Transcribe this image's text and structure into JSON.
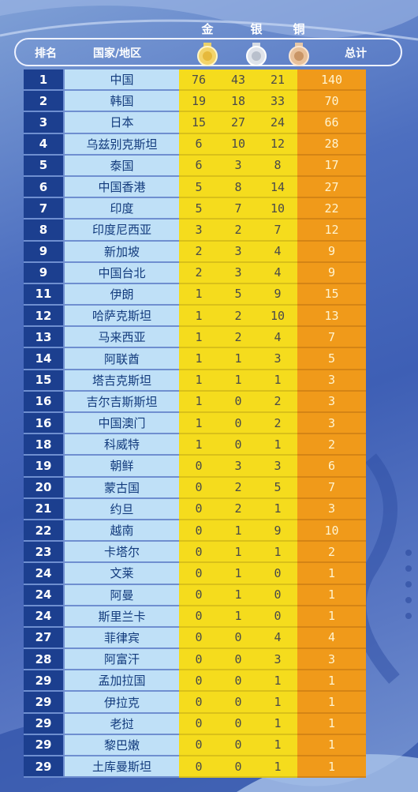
{
  "header": {
    "rank_label": "排名",
    "country_label": "国家/地区",
    "gold_label": "金",
    "silver_label": "银",
    "bronze_label": "铜",
    "total_label": "总计"
  },
  "colors": {
    "rank_bg": "#1c3f8f",
    "name_bg": "#bfe0f7",
    "medal_bg": "#f5dc1d",
    "total_bg": "#f09a1a"
  },
  "rows": [
    {
      "rank": "1",
      "name": "中国",
      "gold": "76",
      "silver": "43",
      "bronze": "21",
      "total": "140"
    },
    {
      "rank": "2",
      "name": "韩国",
      "gold": "19",
      "silver": "18",
      "bronze": "33",
      "total": "70"
    },
    {
      "rank": "3",
      "name": "日本",
      "gold": "15",
      "silver": "27",
      "bronze": "24",
      "total": "66"
    },
    {
      "rank": "4",
      "name": "乌兹别克斯坦",
      "gold": "6",
      "silver": "10",
      "bronze": "12",
      "total": "28"
    },
    {
      "rank": "5",
      "name": "泰国",
      "gold": "6",
      "silver": "3",
      "bronze": "8",
      "total": "17"
    },
    {
      "rank": "6",
      "name": "中国香港",
      "gold": "5",
      "silver": "8",
      "bronze": "14",
      "total": "27"
    },
    {
      "rank": "7",
      "name": "印度",
      "gold": "5",
      "silver": "7",
      "bronze": "10",
      "total": "22"
    },
    {
      "rank": "8",
      "name": "印度尼西亚",
      "gold": "3",
      "silver": "2",
      "bronze": "7",
      "total": "12"
    },
    {
      "rank": "9",
      "name": "新加坡",
      "gold": "2",
      "silver": "3",
      "bronze": "4",
      "total": "9"
    },
    {
      "rank": "9",
      "name": "中国台北",
      "gold": "2",
      "silver": "3",
      "bronze": "4",
      "total": "9"
    },
    {
      "rank": "11",
      "name": "伊朗",
      "gold": "1",
      "silver": "5",
      "bronze": "9",
      "total": "15"
    },
    {
      "rank": "12",
      "name": "哈萨克斯坦",
      "gold": "1",
      "silver": "2",
      "bronze": "10",
      "total": "13"
    },
    {
      "rank": "13",
      "name": "马来西亚",
      "gold": "1",
      "silver": "2",
      "bronze": "4",
      "total": "7"
    },
    {
      "rank": "14",
      "name": "阿联酋",
      "gold": "1",
      "silver": "1",
      "bronze": "3",
      "total": "5"
    },
    {
      "rank": "15",
      "name": "塔吉克斯坦",
      "gold": "1",
      "silver": "1",
      "bronze": "1",
      "total": "3"
    },
    {
      "rank": "16",
      "name": "吉尔吉斯斯坦",
      "gold": "1",
      "silver": "0",
      "bronze": "2",
      "total": "3"
    },
    {
      "rank": "16",
      "name": "中国澳门",
      "gold": "1",
      "silver": "0",
      "bronze": "2",
      "total": "3"
    },
    {
      "rank": "18",
      "name": "科威特",
      "gold": "1",
      "silver": "0",
      "bronze": "1",
      "total": "2"
    },
    {
      "rank": "19",
      "name": "朝鲜",
      "gold": "0",
      "silver": "3",
      "bronze": "3",
      "total": "6"
    },
    {
      "rank": "20",
      "name": "蒙古国",
      "gold": "0",
      "silver": "2",
      "bronze": "5",
      "total": "7"
    },
    {
      "rank": "21",
      "name": "约旦",
      "gold": "0",
      "silver": "2",
      "bronze": "1",
      "total": "3"
    },
    {
      "rank": "22",
      "name": "越南",
      "gold": "0",
      "silver": "1",
      "bronze": "9",
      "total": "10"
    },
    {
      "rank": "23",
      "name": "卡塔尔",
      "gold": "0",
      "silver": "1",
      "bronze": "1",
      "total": "2"
    },
    {
      "rank": "24",
      "name": "文莱",
      "gold": "0",
      "silver": "1",
      "bronze": "0",
      "total": "1"
    },
    {
      "rank": "24",
      "name": "阿曼",
      "gold": "0",
      "silver": "1",
      "bronze": "0",
      "total": "1"
    },
    {
      "rank": "24",
      "name": "斯里兰卡",
      "gold": "0",
      "silver": "1",
      "bronze": "0",
      "total": "1"
    },
    {
      "rank": "27",
      "name": "菲律宾",
      "gold": "0",
      "silver": "0",
      "bronze": "4",
      "total": "4"
    },
    {
      "rank": "28",
      "name": "阿富汗",
      "gold": "0",
      "silver": "0",
      "bronze": "3",
      "total": "3"
    },
    {
      "rank": "29",
      "name": "孟加拉国",
      "gold": "0",
      "silver": "0",
      "bronze": "1",
      "total": "1"
    },
    {
      "rank": "29",
      "name": "伊拉克",
      "gold": "0",
      "silver": "0",
      "bronze": "1",
      "total": "1"
    },
    {
      "rank": "29",
      "name": "老挝",
      "gold": "0",
      "silver": "0",
      "bronze": "1",
      "total": "1"
    },
    {
      "rank": "29",
      "name": "黎巴嫩",
      "gold": "0",
      "silver": "0",
      "bronze": "1",
      "total": "1"
    },
    {
      "rank": "29",
      "name": "土库曼斯坦",
      "gold": "0",
      "silver": "0",
      "bronze": "1",
      "total": "1"
    }
  ]
}
